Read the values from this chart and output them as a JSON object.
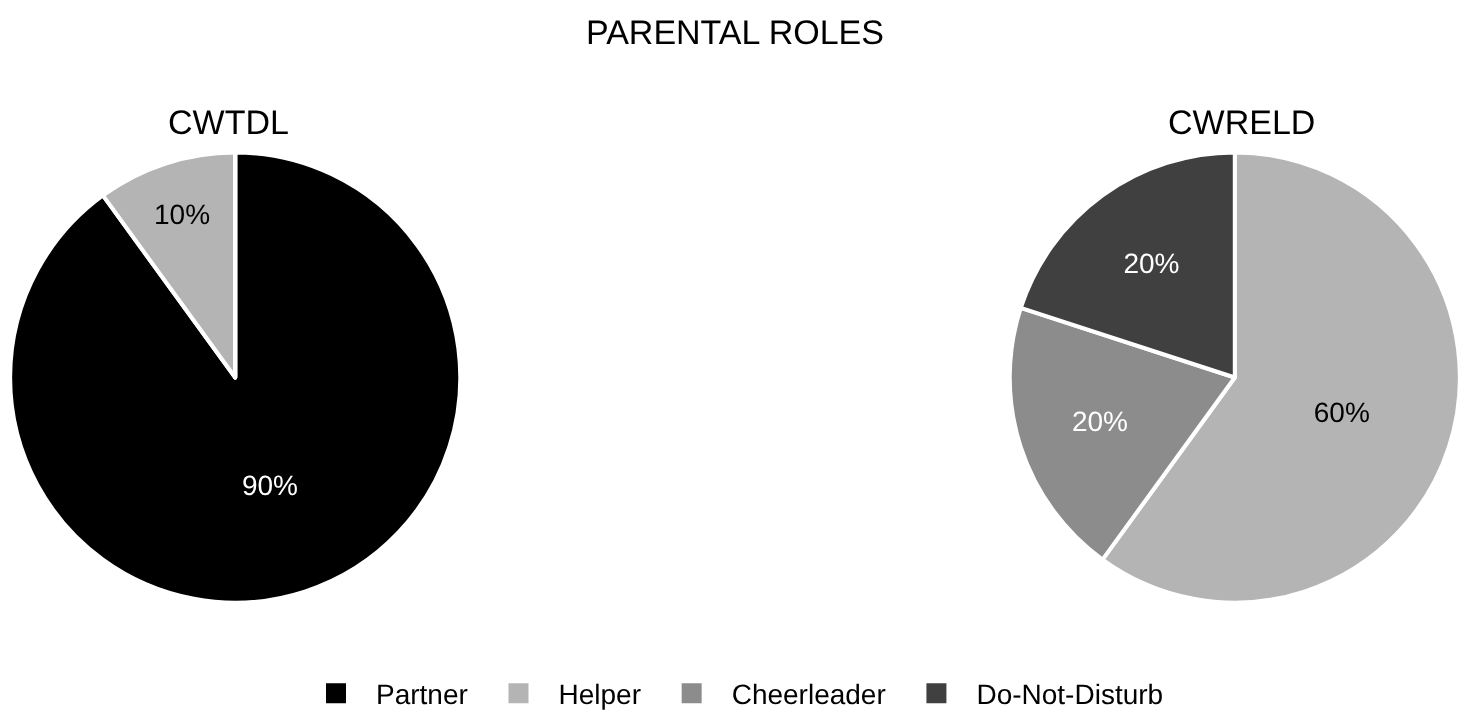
{
  "chart_data": {
    "type": "pie",
    "title": "PARENTAL ROLES",
    "categories": [
      "Partner",
      "Helper",
      "Cheerleader",
      "Do-Not-Disturb"
    ],
    "colors": [
      "#000000",
      "#b4b4b4",
      "#8c8c8c",
      "#404040"
    ],
    "legend": "bottom",
    "series": [
      {
        "name": "CWTDL",
        "values": [
          90,
          10,
          0,
          0
        ],
        "value_labels": [
          "90%",
          "10%",
          null,
          null
        ]
      },
      {
        "name": "CWRELD",
        "values": [
          0,
          60,
          20,
          20
        ],
        "value_labels": [
          null,
          "60%",
          "20%",
          "20%"
        ]
      }
    ]
  }
}
